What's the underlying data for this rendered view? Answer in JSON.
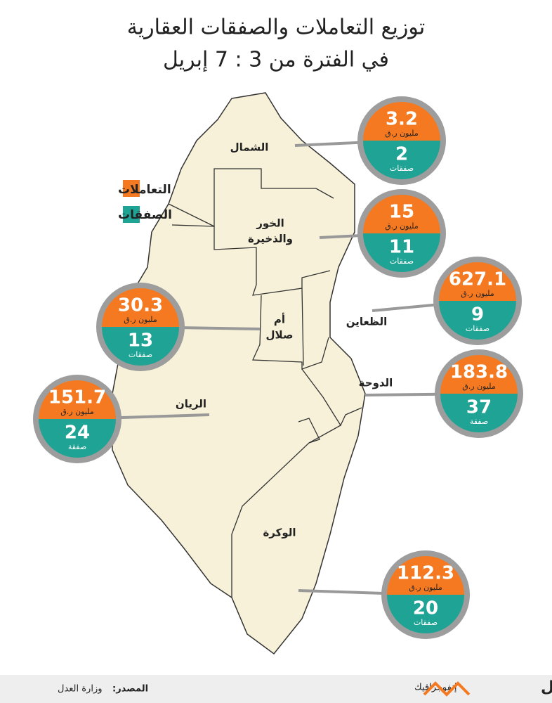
{
  "title": {
    "line1": "توزيع التعاملات والصفقات العقارية",
    "line2": "في الفترة من 3 : 7 إبريل"
  },
  "legend": {
    "transactions": "التعاملات",
    "deals": "الصفقات"
  },
  "regions": [
    {
      "name": [
        "الشمال"
      ],
      "value": 3.2,
      "unit": "مليون ر.ق",
      "count": 2,
      "count_label": "صفقات"
    },
    {
      "name": [
        "الخور",
        "والذخيرة"
      ],
      "value": 15,
      "unit": "مليون ر.ق",
      "count": 11,
      "count_label": "صفقات"
    },
    {
      "name": [
        "الظعاين"
      ],
      "value": 627.1,
      "unit": "مليون ر.ق",
      "count": 9,
      "count_label": "صفقات"
    },
    {
      "name": [
        "أم",
        "صلال"
      ],
      "value": 30.3,
      "unit": "مليون ر.ق",
      "count": 13,
      "count_label": "صفقات"
    },
    {
      "name": [
        "الدوحة"
      ],
      "value": 183.8,
      "unit": "مليون ر.ق",
      "count": 37,
      "count_label": "صفقة"
    },
    {
      "name": [
        "الريان"
      ],
      "value": 151.7,
      "unit": "مليون ر.ق",
      "count": 24,
      "count_label": "صفقة"
    },
    {
      "name": [
        "الوكرة"
      ],
      "value": 112.3,
      "unit": "مليون ر.ق",
      "count": 20,
      "count_label": "صفقات"
    }
  ],
  "footer": {
    "source_label": "المصدر:",
    "source": "وزارة العدل",
    "tag": "إنفوجرافيك",
    "brand": "لوسيل"
  }
}
